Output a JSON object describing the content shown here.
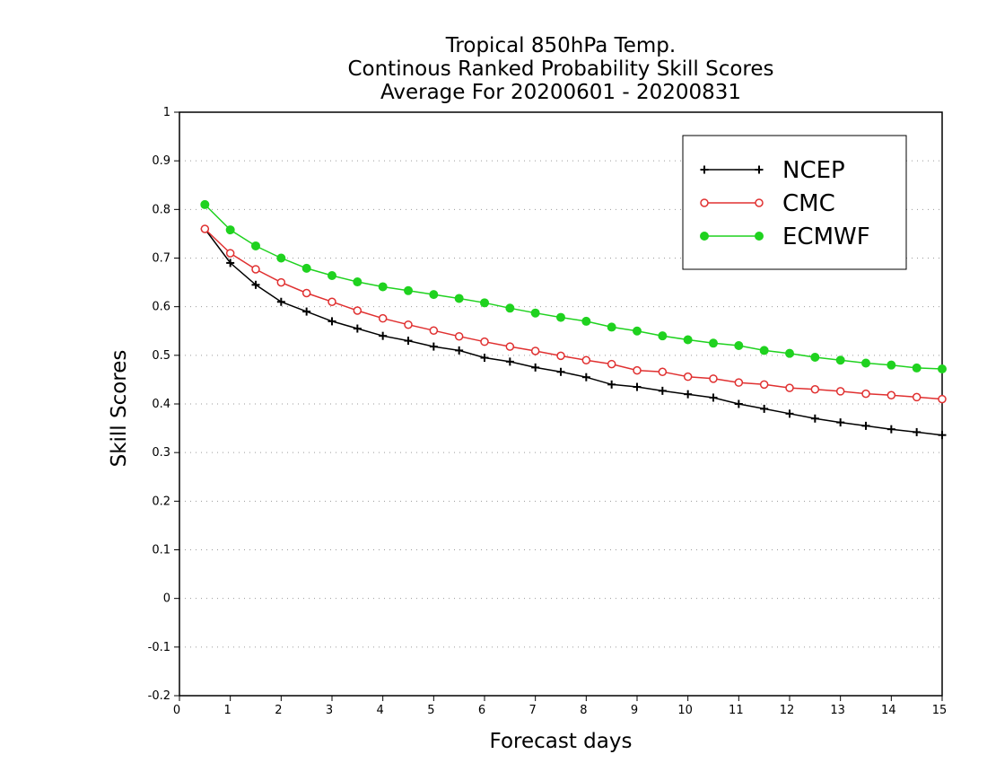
{
  "chart_data": {
    "type": "line",
    "title": [
      "Tropical 850hPa Temp.",
      "Continous Ranked Probability Skill Scores",
      "Average For 20200601 - 20200831"
    ],
    "xlabel": "Forecast days",
    "ylabel": "Skill Scores",
    "xlim": [
      0,
      15
    ],
    "ylim": [
      -0.2,
      1
    ],
    "xticks": [
      0,
      1,
      2,
      3,
      4,
      5,
      6,
      7,
      8,
      9,
      10,
      11,
      12,
      13,
      14,
      15
    ],
    "xtick_labels": [
      "0",
      "1",
      "2",
      "3",
      "4",
      "5",
      "6",
      "7",
      "8",
      "9",
      "10",
      "11",
      "12",
      "13",
      "14",
      "15"
    ],
    "yticks": [
      -0.2,
      -0.1,
      0,
      0.1,
      0.2,
      0.3,
      0.4,
      0.5,
      0.6,
      0.7,
      0.8,
      0.9,
      1
    ],
    "ytick_labels": [
      "-0.2",
      "-0.1",
      "0",
      "0.1",
      "0.2",
      "0.3",
      "0.4",
      "0.5",
      "0.6",
      "0.7",
      "0.8",
      "0.9",
      "1"
    ],
    "grid": "horizontal-dotted",
    "legend_position": "top-right",
    "x": [
      0.5,
      1,
      1.5,
      2,
      2.5,
      3,
      3.5,
      4,
      4.5,
      5,
      5.5,
      6,
      6.5,
      7,
      7.5,
      8,
      8.5,
      9,
      9.5,
      10,
      10.5,
      11,
      11.5,
      12,
      12.5,
      13,
      13.5,
      14,
      14.5,
      15
    ],
    "series": [
      {
        "name": "NCEP",
        "color": "#000000",
        "marker": "plus",
        "values": [
          0.76,
          0.69,
          0.645,
          0.61,
          0.59,
          0.57,
          0.555,
          0.54,
          0.53,
          0.518,
          0.51,
          0.495,
          0.487,
          0.475,
          0.466,
          0.455,
          0.44,
          0.435,
          0.427,
          0.42,
          0.413,
          0.4,
          0.39,
          0.38,
          0.37,
          0.362,
          0.355,
          0.348,
          0.342,
          0.336
        ]
      },
      {
        "name": "CMC",
        "color": "#e03030",
        "marker": "open-circle",
        "values": [
          0.76,
          0.71,
          0.677,
          0.65,
          0.628,
          0.61,
          0.592,
          0.576,
          0.563,
          0.551,
          0.539,
          0.528,
          0.518,
          0.509,
          0.499,
          0.49,
          0.482,
          0.469,
          0.466,
          0.456,
          0.452,
          0.444,
          0.44,
          0.433,
          0.43,
          0.426,
          0.421,
          0.418,
          0.414,
          0.41
        ]
      },
      {
        "name": "ECMWF",
        "color": "#1fd21f",
        "marker": "filled-circle",
        "values": [
          0.81,
          0.758,
          0.725,
          0.7,
          0.679,
          0.664,
          0.651,
          0.641,
          0.633,
          0.625,
          0.617,
          0.608,
          0.597,
          0.587,
          0.578,
          0.57,
          0.558,
          0.55,
          0.54,
          0.532,
          0.525,
          0.52,
          0.51,
          0.504,
          0.496,
          0.49,
          0.484,
          0.48,
          0.474,
          0.472
        ]
      }
    ]
  }
}
